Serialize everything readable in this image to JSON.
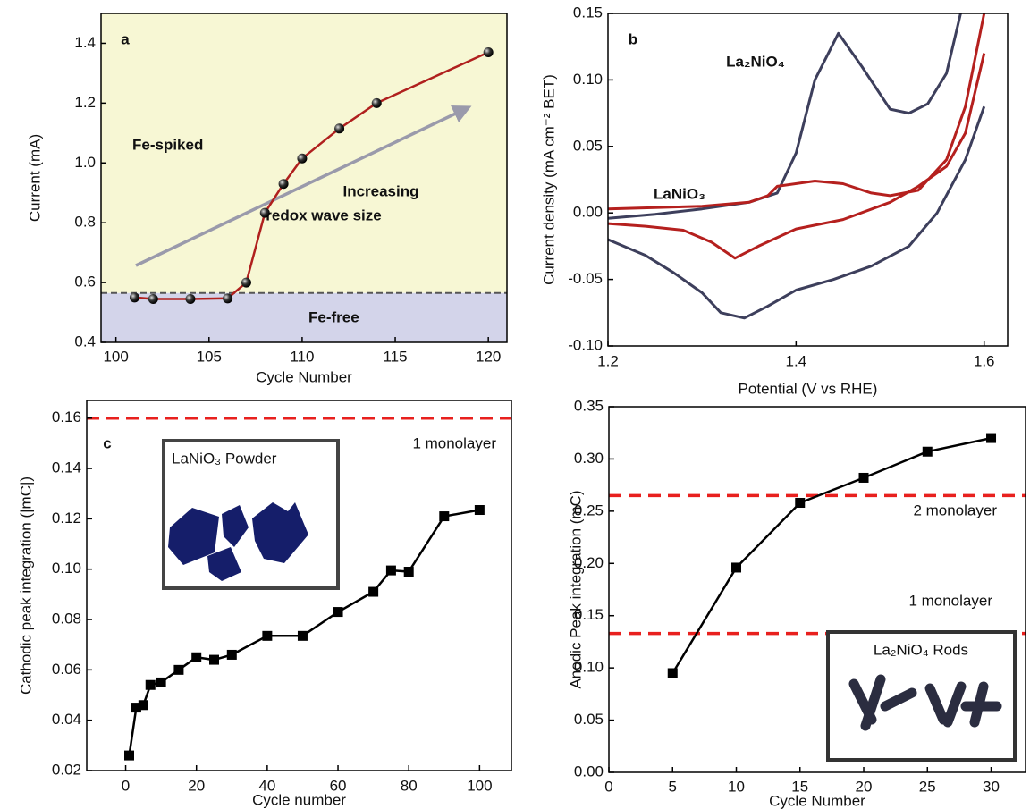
{
  "chart_data": [
    {
      "type": "line",
      "label": "a",
      "x_label": "Cycle Number",
      "y_label": "Current (mA)",
      "x": [
        101,
        102,
        104,
        106,
        107,
        108,
        109,
        110,
        112,
        114,
        120
      ],
      "values": [
        0.55,
        0.545,
        0.545,
        0.547,
        0.6,
        0.833,
        0.93,
        1.015,
        1.115,
        1.2,
        1.37
      ],
      "color": "#b0201e",
      "marker": "sphere",
      "xlim": [
        99.2,
        121
      ],
      "ylim": [
        0.4,
        1.5
      ],
      "xticks": [
        100,
        105,
        110,
        115,
        120
      ],
      "yticks": [
        0.4,
        0.6,
        0.8,
        {
          "value": 1,
          "label": "1.0"
        },
        1.2,
        1.4
      ],
      "reference_lines": [
        {
          "value": 0.565,
          "color": "#555555"
        }
      ],
      "regions": [
        {
          "label": "Fe-spiked",
          "color": "#f7f7d4"
        },
        {
          "label": "Fe-free",
          "color": "#d3d4ea"
        }
      ],
      "annotation": {
        "lines": [
          "Increasing",
          "redox wave size"
        ],
        "color": "#a08ab8"
      }
    },
    {
      "type": "line",
      "label": "b",
      "x_label": "Potential (V vs RHE)",
      "y_label": "Current density (mA cm⁻² BET)",
      "xlim": [
        1.2,
        1.625
      ],
      "ylim": [
        -0.1,
        0.15
      ],
      "xticks": [
        1.2,
        1.4,
        1.6
      ],
      "yticks": [
        {
          "value": -0.1,
          "label": "-0.10"
        },
        -0.05,
        {
          "value": 0,
          "label": "0.00"
        },
        0.05,
        {
          "value": 0.1,
          "label": "0.10"
        },
        0.15
      ],
      "series": [
        {
          "name": "La₂NiO₄",
          "color": "#3d3f5c",
          "x": [
            1.2,
            1.25,
            1.3,
            1.35,
            1.38,
            1.4,
            1.42,
            1.445,
            1.47,
            1.5,
            1.52,
            1.54,
            1.56,
            1.575,
            1.6,
            1.6,
            1.58,
            1.55,
            1.52,
            1.48,
            1.44,
            1.4,
            1.37,
            1.345,
            1.32,
            1.3,
            1.27,
            1.24,
            1.2
          ],
          "values": [
            -0.004,
            -0.001,
            0.003,
            0.008,
            0.015,
            0.045,
            0.1,
            0.135,
            0.11,
            0.078,
            0.075,
            0.082,
            0.105,
            0.15,
            null,
            0.08,
            0.04,
            0.0,
            -0.025,
            -0.04,
            -0.05,
            -0.058,
            -0.07,
            -0.079,
            -0.075,
            -0.06,
            -0.045,
            -0.032,
            -0.02
          ]
        },
        {
          "name": "LaNiO₃",
          "color": "#b5201e",
          "x": [
            1.2,
            1.25,
            1.3,
            1.35,
            1.37,
            1.38,
            1.42,
            1.45,
            1.48,
            1.5,
            1.53,
            1.56,
            1.58,
            1.6,
            1.6,
            1.6,
            1.58,
            1.56,
            1.53,
            1.5,
            1.45,
            1.4,
            1.36,
            1.335,
            1.31,
            1.28,
            1.24,
            1.2
          ],
          "values": [
            0.003,
            0.004,
            0.005,
            0.008,
            0.013,
            0.02,
            0.024,
            0.022,
            0.015,
            0.013,
            0.017,
            0.04,
            0.08,
            0.15,
            null,
            0.12,
            0.06,
            0.035,
            0.02,
            0.008,
            -0.005,
            -0.012,
            -0.025,
            -0.034,
            -0.022,
            -0.013,
            -0.01,
            -0.008
          ]
        }
      ]
    },
    {
      "type": "line",
      "label": "c",
      "x_label": "Cycle number",
      "y_label": "Cathodic peak integration (|mC|)",
      "x": [
        1,
        3,
        5,
        7,
        10,
        15,
        20,
        25,
        30,
        40,
        50,
        60,
        70,
        75,
        80,
        90,
        100
      ],
      "values": [
        0.026,
        0.045,
        0.046,
        0.054,
        0.055,
        0.06,
        0.065,
        0.064,
        0.066,
        0.0735,
        0.0735,
        0.083,
        0.091,
        0.0995,
        0.099,
        0.121,
        0.1235
      ],
      "color": "#000000",
      "marker": "square",
      "xlim": [
        -11,
        109
      ],
      "ylim": [
        0.02,
        0.167
      ],
      "xticks": [
        0,
        20,
        40,
        60,
        80,
        100
      ],
      "yticks": [
        0.02,
        0.04,
        0.06,
        0.08,
        {
          "value": 0.1,
          "label": "0.10"
        },
        0.12,
        0.14,
        0.16
      ],
      "reference_lines": [
        {
          "value": 0.16,
          "label": "1 monolayer",
          "color": "#e8201e"
        }
      ],
      "inset": {
        "label": "LaNiO₃ Powder"
      }
    },
    {
      "type": "line",
      "x_label": "Cycle Number",
      "y_label": "Anodic Peak integration (mC)",
      "x": [
        5,
        10,
        15,
        20,
        25,
        30
      ],
      "values": [
        0.095,
        0.196,
        0.258,
        0.282,
        0.307,
        0.32
      ],
      "color": "#000000",
      "marker": "square",
      "xlim": [
        0,
        32.7
      ],
      "ylim": [
        0,
        0.35
      ],
      "xticks": [
        0,
        5,
        10,
        15,
        20,
        25,
        30
      ],
      "yticks": [
        {
          "value": 0,
          "label": "0.00"
        },
        0.05,
        {
          "value": 0.1,
          "label": "0.10"
        },
        0.15,
        {
          "value": 0.2,
          "label": "0.20"
        },
        0.25,
        {
          "value": 0.3,
          "label": "0.30"
        },
        0.35
      ],
      "reference_lines": [
        {
          "value": 0.265,
          "label": "2 monolayer",
          "color": "#e8201e"
        },
        {
          "value": 0.133,
          "label": "1 monolayer",
          "color": "#e8201e"
        }
      ],
      "inset": {
        "label": "La₂NiO₄ Rods"
      }
    }
  ]
}
